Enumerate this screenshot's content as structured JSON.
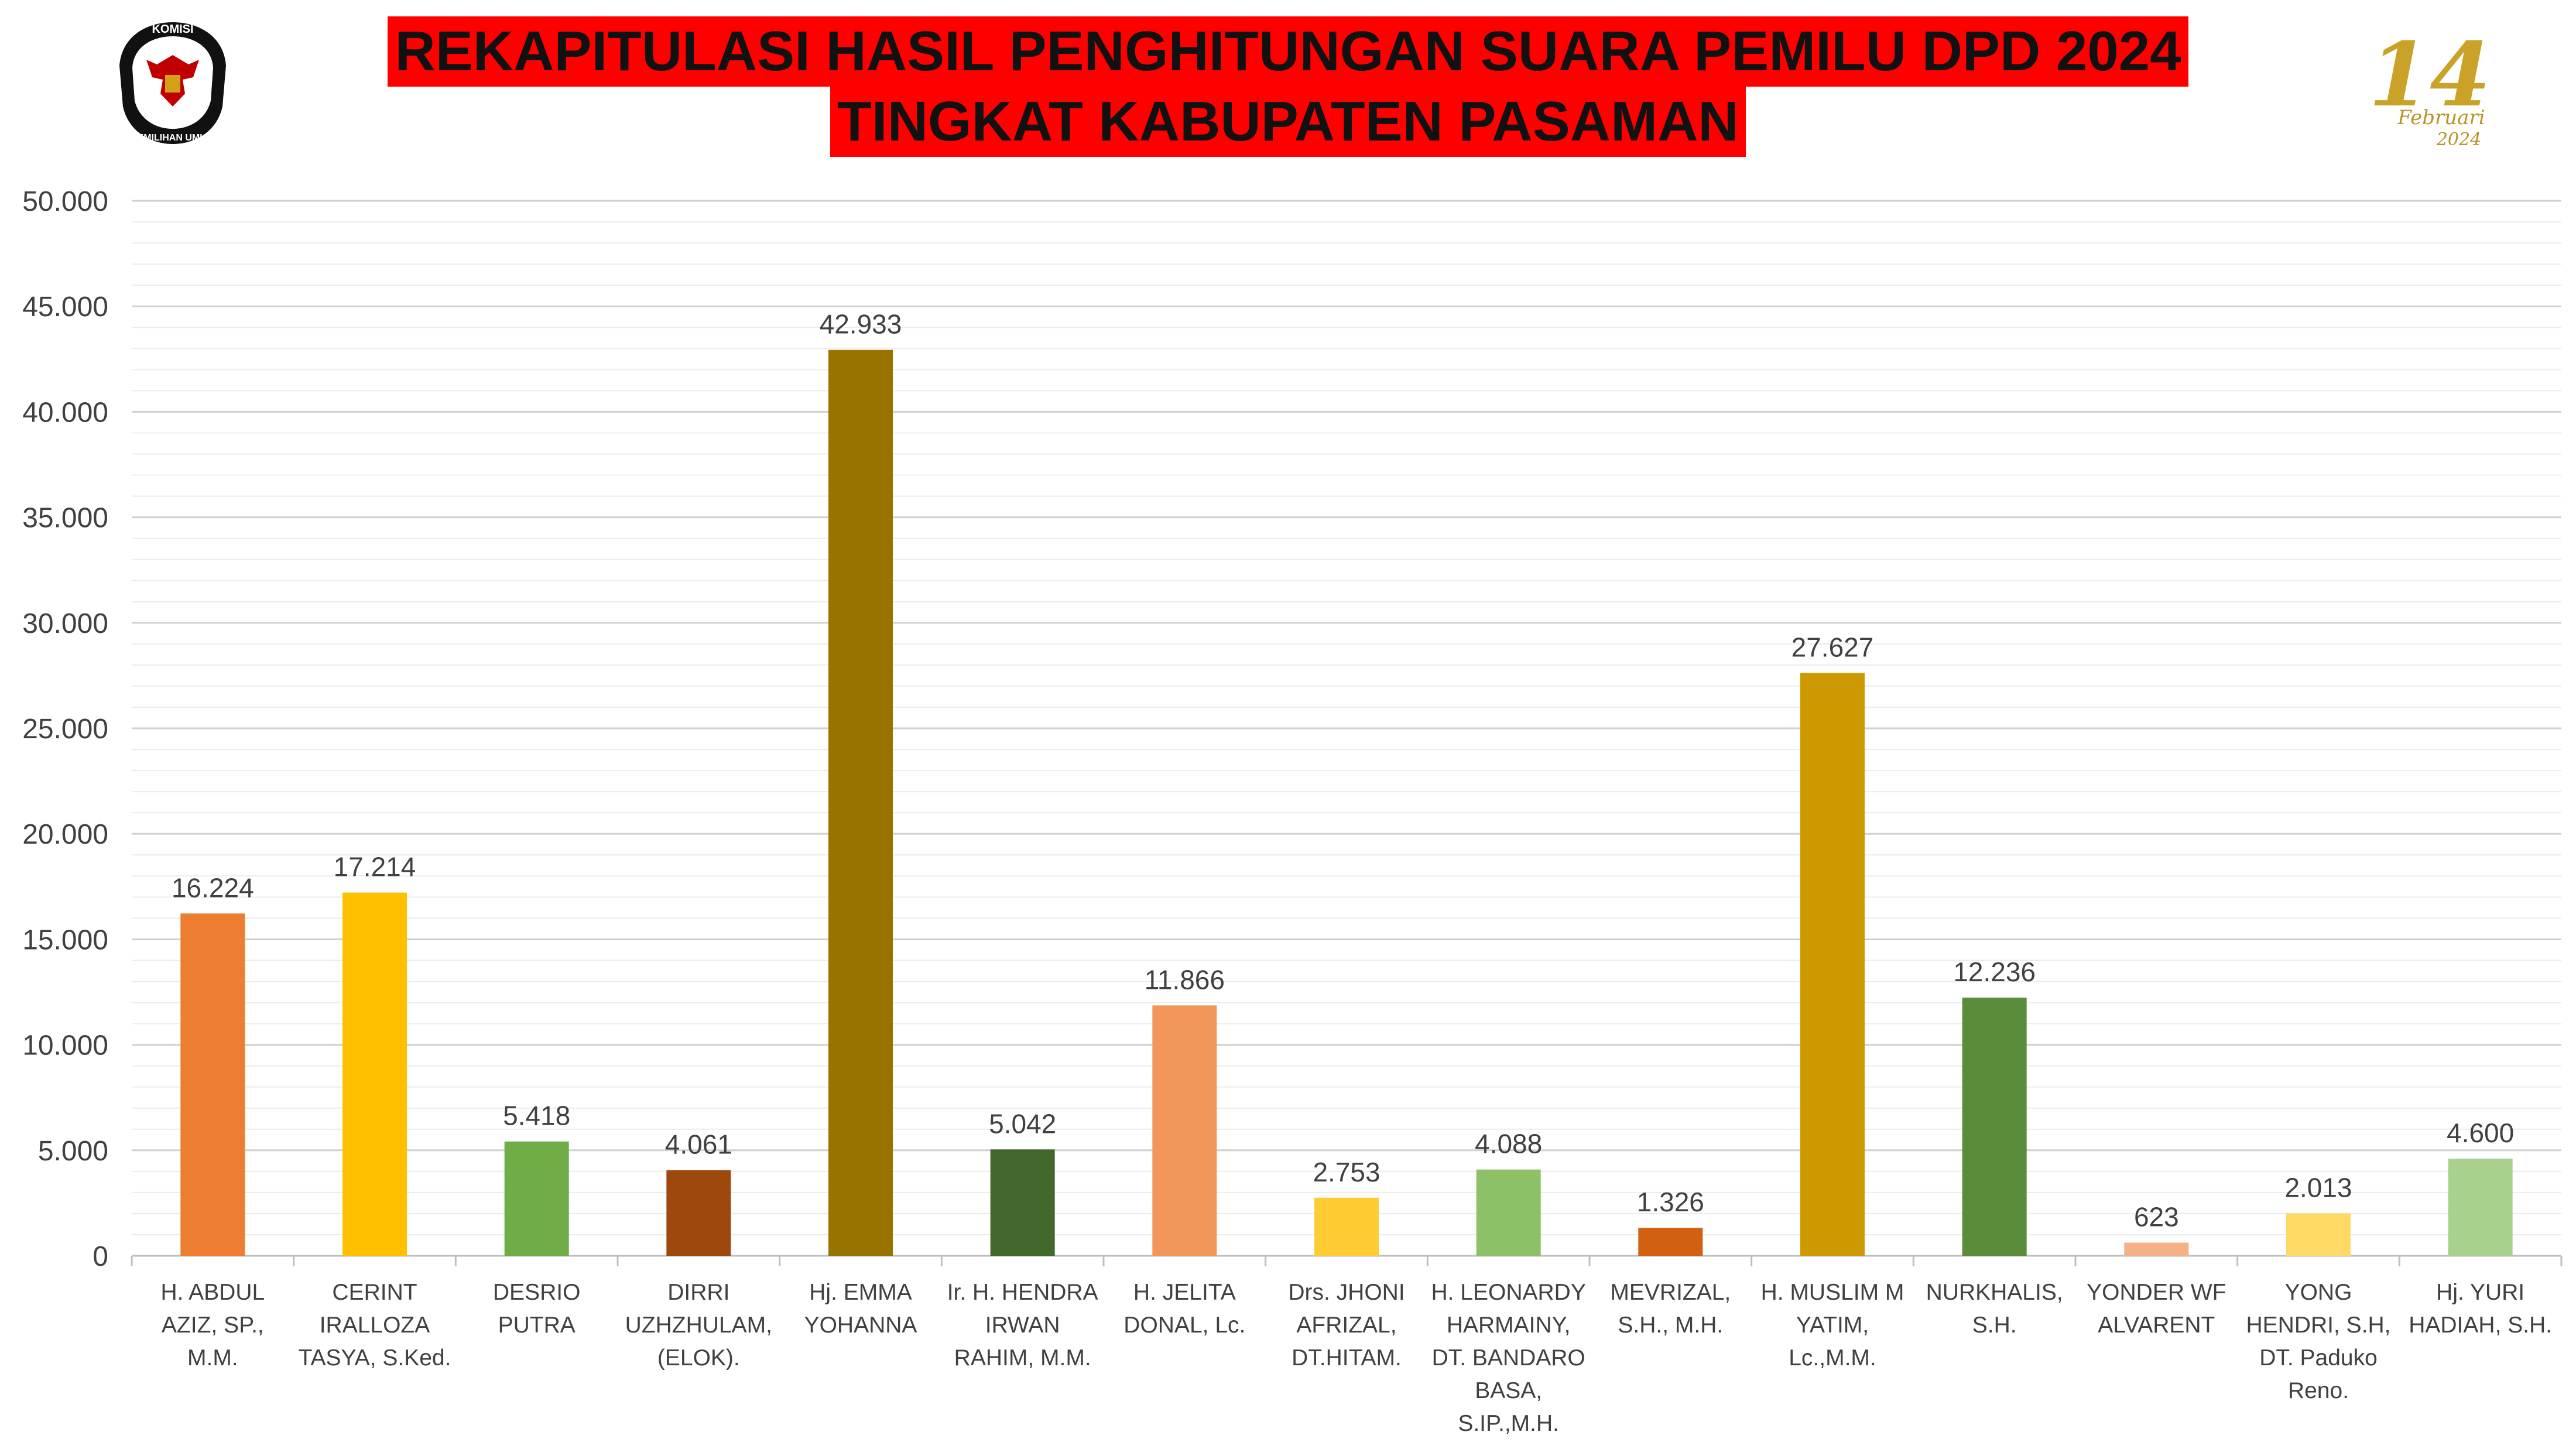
{
  "header": {
    "title_line1": "REKAPITULASI HASIL PENGHITUNGAN SUARA PEMILU DPD 2024",
    "title_line2": "TINGKAT KABUPATEN PASAMAN",
    "title_bg_color": "#ff0000"
  },
  "logos": {
    "left": {
      "icon": "kpu-garuda-logo-icon",
      "text_top": "KOMISI",
      "text_bottom": "PEMILIHAN UMUM"
    },
    "right": {
      "icon": "14-februari-2024-logo-icon",
      "number": "14",
      "text": "Februari",
      "year": "2024"
    }
  },
  "chart_data": {
    "type": "bar",
    "title": "REKAPITULASI HASIL PENGHITUNGAN SUARA PEMILU DPD 2024 TINGKAT KABUPATEN PASAMAN",
    "xlabel": "",
    "ylabel": "",
    "ylim": [
      0,
      50000
    ],
    "yticks": [
      "0",
      "5.000",
      "10.000",
      "15.000",
      "20.000",
      "25.000",
      "30.000",
      "35.000",
      "40.000",
      "45.000",
      "50.000"
    ],
    "grid": true,
    "legend": "none",
    "categories": [
      [
        "H. ABDUL",
        "AZIZ, SP.,",
        "M.M."
      ],
      [
        "CERINT",
        "IRALLOZA",
        "TASYA, S.Ked."
      ],
      [
        "DESRIO",
        "PUTRA"
      ],
      [
        "DIRRI",
        "UZHZHULAM,",
        "(ELOK)."
      ],
      [
        "Hj. EMMA",
        "YOHANNA"
      ],
      [
        "Ir. H. HENDRA",
        "IRWAN",
        "RAHIM, M.M."
      ],
      [
        "H. JELITA",
        "DONAL, Lc."
      ],
      [
        "Drs. JHONI",
        "AFRIZAL,",
        "DT.HITAM."
      ],
      [
        "H. LEONARDY",
        "HARMAINY,",
        "DT. BANDARO",
        "BASA,",
        "S.IP.,M.H."
      ],
      [
        "MEVRIZAL,",
        "S.H., M.H."
      ],
      [
        "H. MUSLIM M",
        "YATIM,",
        "Lc.,M.M."
      ],
      [
        "NURKHALIS,",
        "S.H."
      ],
      [
        "YONDER WF",
        "ALVARENT"
      ],
      [
        "YONG",
        "HENDRI, S.H,",
        "DT. Paduko",
        "Reno."
      ],
      [
        "Hj. YURI",
        "HADIAH, S.H."
      ]
    ],
    "values": [
      16224,
      17214,
      5418,
      4061,
      42933,
      5042,
      11866,
      2753,
      4088,
      1326,
      27627,
      12236,
      623,
      2013,
      4600
    ],
    "value_labels": [
      "16.224",
      "17.214",
      "5.418",
      "4.061",
      "42.933",
      "5.042",
      "11.866",
      "2.753",
      "4.088",
      "1.326",
      "27.627",
      "12.236",
      "623",
      "2.013",
      "4.600"
    ],
    "colors": [
      "#ed7d31",
      "#ffc000",
      "#70ad47",
      "#9e480e",
      "#997300",
      "#43682b",
      "#f1975a",
      "#ffcd33",
      "#8cc168",
      "#d26012",
      "#cc9a00",
      "#5a8c3a",
      "#f4b183",
      "#ffd966",
      "#a9d18e"
    ]
  }
}
